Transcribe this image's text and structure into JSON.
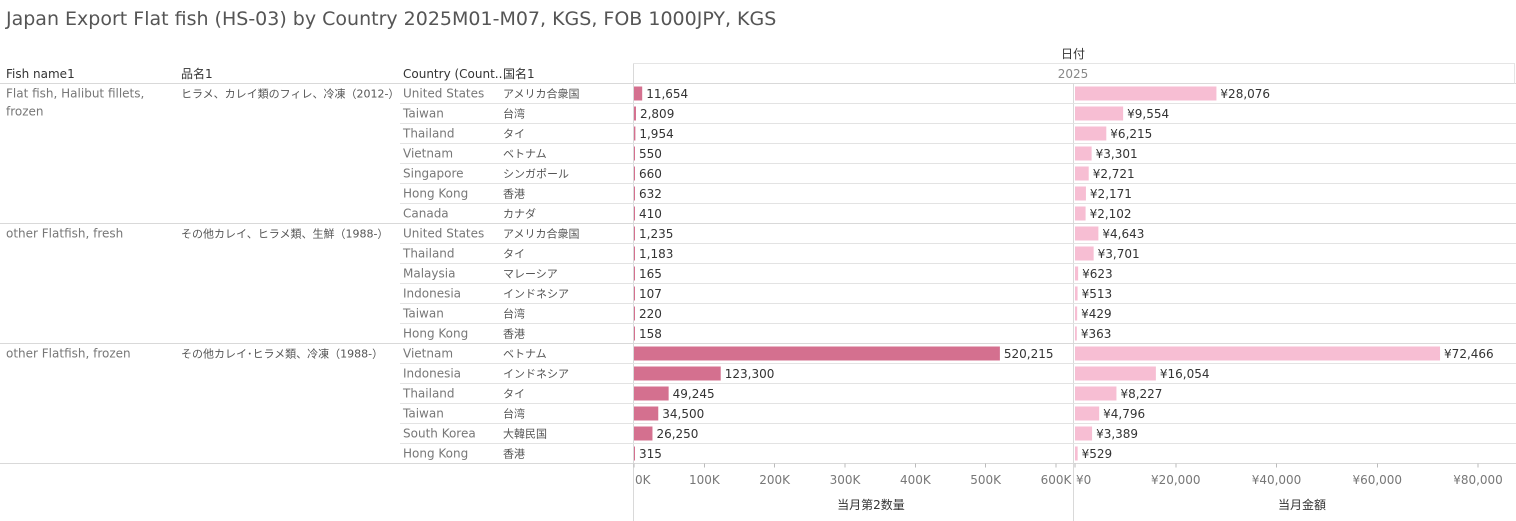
{
  "title": "Japan Export Flat fish (HS-03) by Country 2025M01-M07, KGS, FOB 1000JPY, KGS",
  "headers": {
    "fish_name": "Fish name1",
    "hinmei": "品名1",
    "country": "Country (Count..",
    "kokumei": "国名1",
    "date": "日付",
    "year": "2025"
  },
  "chart_data": {
    "type": "bar",
    "groups": [
      {
        "fish_name": "Flat fish, Halibut fillets, frozen",
        "fish_name_lines": [
          "Flat fish, Halibut fillets,",
          "frozen"
        ],
        "hinmei": "ヒラメ、カレイ類のフィレ、冷凍（2012-）",
        "rows": [
          {
            "country": "United States",
            "kokumei": "アメリカ合衆国",
            "quantity": 11654,
            "quantity_label": "11,654",
            "value": 28076,
            "value_label": "¥28,076"
          },
          {
            "country": "Taiwan",
            "kokumei": "台湾",
            "quantity": 2809,
            "quantity_label": "2,809",
            "value": 9554,
            "value_label": "¥9,554"
          },
          {
            "country": "Thailand",
            "kokumei": "タイ",
            "quantity": 1954,
            "quantity_label": "1,954",
            "value": 6215,
            "value_label": "¥6,215"
          },
          {
            "country": "Vietnam",
            "kokumei": "ベトナム",
            "quantity": 550,
            "quantity_label": "550",
            "value": 3301,
            "value_label": "¥3,301"
          },
          {
            "country": "Singapore",
            "kokumei": "シンガポール",
            "quantity": 660,
            "quantity_label": "660",
            "value": 2721,
            "value_label": "¥2,721"
          },
          {
            "country": "Hong Kong",
            "kokumei": "香港",
            "quantity": 632,
            "quantity_label": "632",
            "value": 2171,
            "value_label": "¥2,171"
          },
          {
            "country": "Canada",
            "kokumei": "カナダ",
            "quantity": 410,
            "quantity_label": "410",
            "value": 2102,
            "value_label": "¥2,102"
          }
        ]
      },
      {
        "fish_name": "other Flatfish, fresh",
        "fish_name_lines": [
          "other Flatfish, fresh"
        ],
        "hinmei": "その他カレイ、ヒラメ類、生鮮（1988-）",
        "rows": [
          {
            "country": "United States",
            "kokumei": "アメリカ合衆国",
            "quantity": 1235,
            "quantity_label": "1,235",
            "value": 4643,
            "value_label": "¥4,643"
          },
          {
            "country": "Thailand",
            "kokumei": "タイ",
            "quantity": 1183,
            "quantity_label": "1,183",
            "value": 3701,
            "value_label": "¥3,701"
          },
          {
            "country": "Malaysia",
            "kokumei": "マレーシア",
            "quantity": 165,
            "quantity_label": "165",
            "value": 623,
            "value_label": "¥623"
          },
          {
            "country": "Indonesia",
            "kokumei": "インドネシア",
            "quantity": 107,
            "quantity_label": "107",
            "value": 513,
            "value_label": "¥513"
          },
          {
            "country": "Taiwan",
            "kokumei": "台湾",
            "quantity": 220,
            "quantity_label": "220",
            "value": 429,
            "value_label": "¥429"
          },
          {
            "country": "Hong Kong",
            "kokumei": "香港",
            "quantity": 158,
            "quantity_label": "158",
            "value": 363,
            "value_label": "¥363"
          }
        ]
      },
      {
        "fish_name": "other Flatfish, frozen",
        "fish_name_lines": [
          "other Flatfish, frozen"
        ],
        "hinmei": "その他カレイ･ヒラメ類、冷凍（1988-）",
        "rows": [
          {
            "country": "Vietnam",
            "kokumei": "ベトナム",
            "quantity": 520215,
            "quantity_label": "520,215",
            "value": 72466,
            "value_label": "¥72,466"
          },
          {
            "country": "Indonesia",
            "kokumei": "インドネシア",
            "quantity": 123300,
            "quantity_label": "123,300",
            "value": 16054,
            "value_label": "¥16,054"
          },
          {
            "country": "Thailand",
            "kokumei": "タイ",
            "quantity": 49245,
            "quantity_label": "49,245",
            "value": 8227,
            "value_label": "¥8,227"
          },
          {
            "country": "Taiwan",
            "kokumei": "台湾",
            "quantity": 34500,
            "quantity_label": "34,500",
            "value": 4796,
            "value_label": "¥4,796"
          },
          {
            "country": "South Korea",
            "kokumei": "大韓民国",
            "quantity": 26250,
            "quantity_label": "26,250",
            "value": 3389,
            "value_label": "¥3,389"
          },
          {
            "country": "Hong Kong",
            "kokumei": "香港",
            "quantity": 315,
            "quantity_label": "315",
            "value": 529,
            "value_label": "¥529"
          }
        ]
      }
    ],
    "quantity_axis": {
      "label": "当月第2数量",
      "range": [
        0,
        600000
      ],
      "ticks": [
        0,
        100000,
        200000,
        300000,
        400000,
        500000,
        600000
      ],
      "tick_labels": [
        "0K",
        "100K",
        "200K",
        "300K",
        "400K",
        "500K",
        "600K"
      ],
      "color": "#d4708f"
    },
    "value_axis": {
      "label": "当月金額",
      "range": [
        0,
        80000
      ],
      "ticks": [
        0,
        20000,
        40000,
        60000,
        80000
      ],
      "tick_labels": [
        "¥0",
        "¥20,000",
        "¥40,000",
        "¥60,000",
        "¥80,000"
      ],
      "color": "#f7bed3"
    }
  }
}
